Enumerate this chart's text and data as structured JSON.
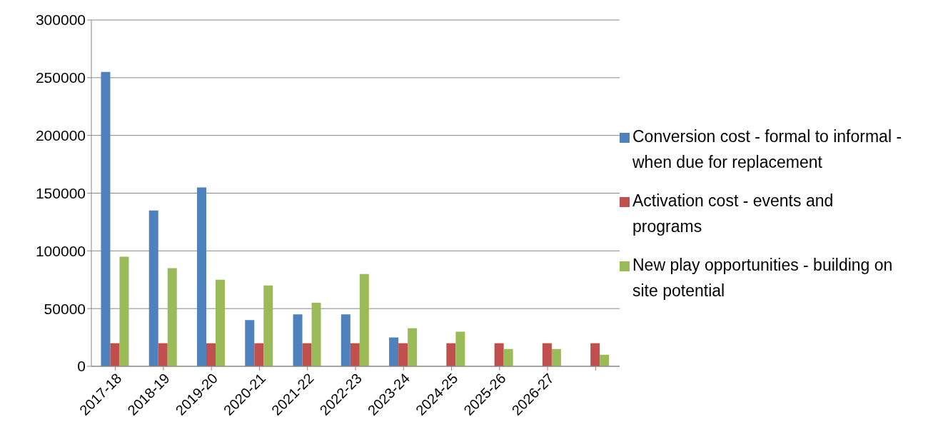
{
  "chart_data": {
    "type": "bar",
    "categories": [
      "2017-18",
      "2018-19",
      "2019-20",
      "2020-21",
      "2021-22",
      "2022-23",
      "2023-24",
      "2024-25",
      "2025-26",
      "2026-27",
      null
    ],
    "series": [
      {
        "name": "Conversion cost - formal to informal - when due for replacement",
        "color": "#4f81bd",
        "values": [
          255000,
          135000,
          155000,
          40000,
          45000,
          45000,
          25000,
          null,
          null,
          null,
          null
        ]
      },
      {
        "name": "Activation cost  - events and programs",
        "color": "#c0504d",
        "values": [
          20000,
          20000,
          20000,
          20000,
          20000,
          20000,
          20000,
          20000,
          20000,
          20000,
          20000
        ]
      },
      {
        "name": "New play opportunities - building on site potential",
        "color": "#9bbb59",
        "values": [
          95000,
          85000,
          75000,
          70000,
          55000,
          80000,
          33000,
          30000,
          15000,
          15000,
          10000
        ]
      }
    ],
    "ylim": [
      0,
      300000
    ],
    "yticks": [
      0,
      50000,
      100000,
      150000,
      200000,
      250000,
      300000
    ],
    "grid": "y",
    "legend": "right"
  }
}
